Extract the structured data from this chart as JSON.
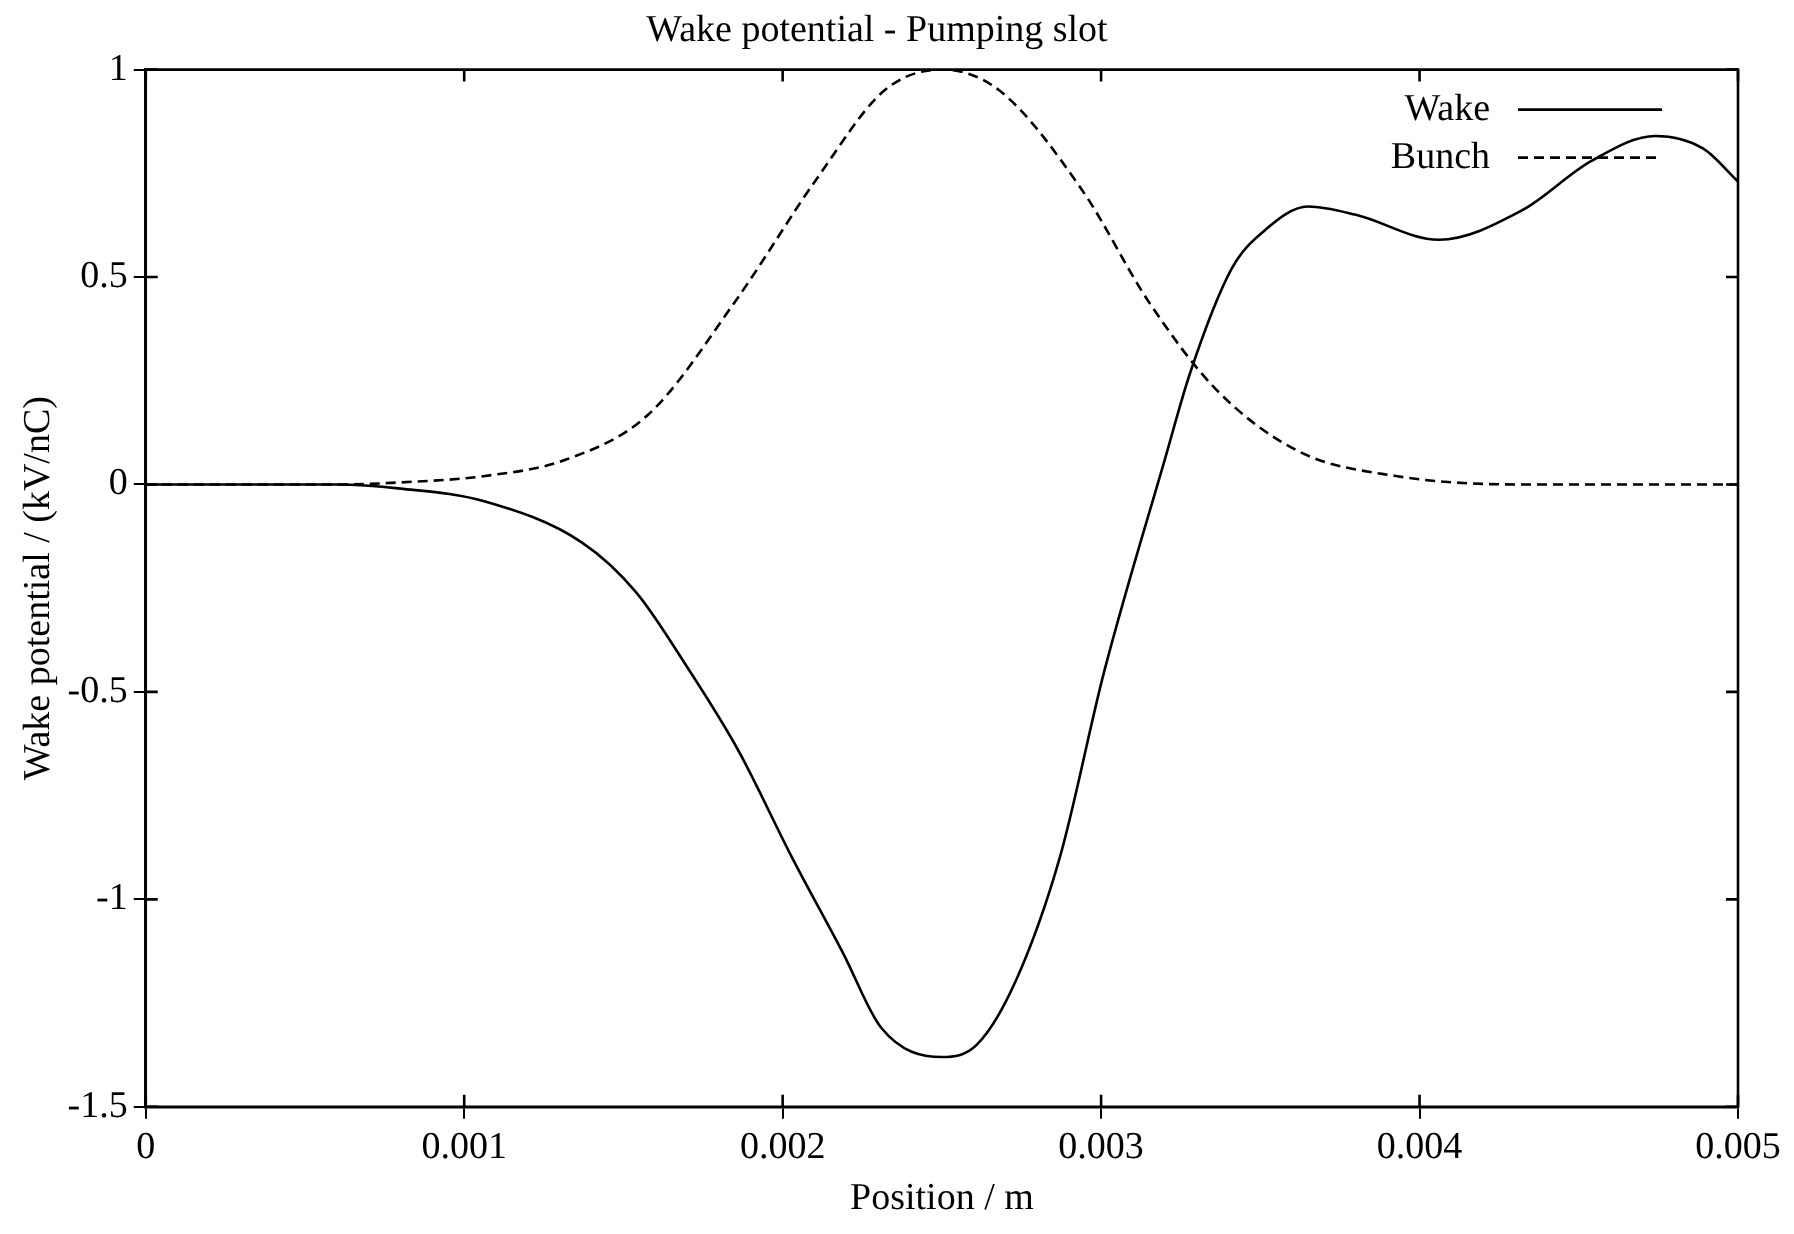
{
  "chart_data": {
    "type": "line",
    "title": "Wake potential - Pumping slot",
    "xlabel": "Position / m",
    "ylabel": "Wake potential / (kV/nC)",
    "xlim": [
      0,
      0.005
    ],
    "xticks": [
      0,
      0.001,
      0.002,
      0.003,
      0.004,
      0.005
    ],
    "ylim": [
      -1.5,
      1
    ],
    "yticks": [
      -1.5,
      -1,
      -0.5,
      0,
      0.5,
      1
    ],
    "grid": false,
    "legend": "top right",
    "marker": "none",
    "series": [
      {
        "name": "Wake",
        "color": "#000000",
        "line_style": "solid",
        "x": [
          0,
          0.0006,
          0.0008,
          0.00106,
          0.00137,
          0.00154,
          0.0017,
          0.00186,
          0.00203,
          0.00219,
          0.00231,
          0.0025,
          0.00261,
          0.00273,
          0.00287,
          0.00301,
          0.0032,
          0.00328,
          0.00341,
          0.00351,
          0.00365,
          0.0038,
          0.00406,
          0.00432,
          0.00454,
          0.00474,
          0.00489,
          0.005
        ],
        "values": [
          0,
          0,
          -0.01,
          -0.04,
          -0.14,
          -0.26,
          -0.44,
          -0.64,
          -0.9,
          -1.13,
          -1.31,
          -1.38,
          -1.35,
          -1.2,
          -0.9,
          -0.45,
          0.06,
          0.27,
          0.52,
          0.61,
          0.67,
          0.65,
          0.59,
          0.66,
          0.78,
          0.84,
          0.81,
          0.73
        ]
      },
      {
        "name": "Bunch",
        "color": "#000000",
        "line_style": "dashed",
        "x": [
          0,
          0.0006,
          0.0008,
          0.00106,
          0.00132,
          0.00158,
          0.00185,
          0.00211,
          0.00232,
          0.0025,
          0.00268,
          0.00294,
          0.00315,
          0.00336,
          0.00362,
          0.00393,
          0.00432,
          0.005
        ],
        "values": [
          0,
          0,
          0.005,
          0.02,
          0.06,
          0.17,
          0.44,
          0.74,
          0.95,
          1,
          0.95,
          0.71,
          0.44,
          0.23,
          0.08,
          0.02,
          0,
          0
        ]
      }
    ]
  }
}
